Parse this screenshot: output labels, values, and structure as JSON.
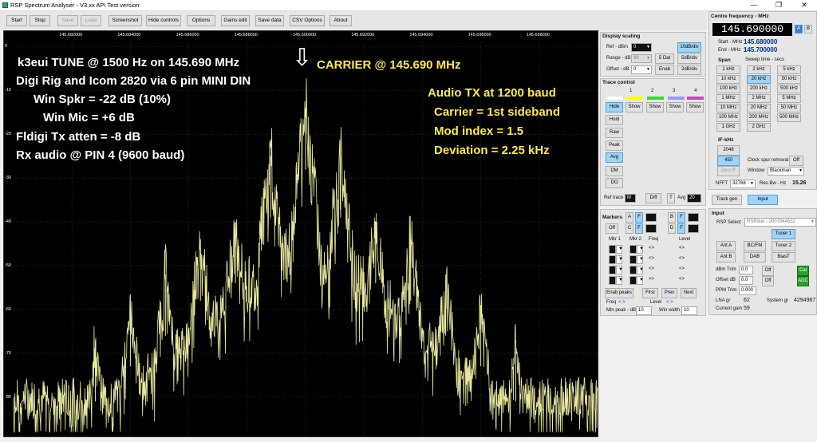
{
  "window": {
    "title": "RSP Spectrum Analyser - V3.xx API Test version",
    "min": "—",
    "max": "❐",
    "close": "✕"
  },
  "toolbar": [
    {
      "label": "Start",
      "enabled": true
    },
    {
      "label": "Stop",
      "enabled": true
    },
    {
      "label": "Save",
      "enabled": false
    },
    {
      "label": "Load",
      "enabled": false
    },
    {
      "label": "Screenshot",
      "enabled": true
    },
    {
      "label": "Hide controls",
      "enabled": true
    },
    {
      "label": "Options",
      "enabled": true
    },
    {
      "label": "Gains edit",
      "enabled": true
    },
    {
      "label": "Save data",
      "enabled": true
    },
    {
      "label": "CSV Options",
      "enabled": true
    },
    {
      "label": "About",
      "enabled": true
    }
  ],
  "overlay": {
    "left": [
      "k3eui  TUNE @ 1500 Hz on 145.690 MHz",
      "Digi Rig  and  Icom 2820  via 6 pin MINI DIN",
      "Win Spkr =   -22 dB (10%)",
      "Win Mic  =   +6 dB",
      "Fldigi Tx atten =   -8 dB",
      "Rx audio @ PIN 4 (9600 baud)"
    ],
    "arrow": "⇩",
    "carrier": "CARRIER  @ 145.690 MHz",
    "right": [
      "Audio TX at 1200 baud",
      "Carrier = 1st sideband",
      "Mod index = 1.5",
      "Deviation = 2.25 kHz"
    ]
  },
  "chart_data": {
    "type": "line",
    "x_ticks": [
      "145.682000",
      "145.684000",
      "145.686000",
      "145.688000",
      "145.690000",
      "145.692000",
      "145.694000",
      "145.696000",
      "145.698000"
    ],
    "y_ticks": [
      "0",
      "-10",
      "-20",
      "-30",
      "-40",
      "-50",
      "-60",
      "-70",
      "-80"
    ],
    "xlim": [
      145.68,
      145.7
    ],
    "ylim": [
      -89,
      1
    ],
    "ylabel_unit": "dBm",
    "trace_color": "#e8e8a0",
    "peaks": [
      {
        "x": 145.69,
        "y": -14
      },
      {
        "x": 145.6888,
        "y": -25
      },
      {
        "x": 145.6912,
        "y": -25
      },
      {
        "x": 145.6876,
        "y": -40
      },
      {
        "x": 145.6924,
        "y": -40
      },
      {
        "x": 145.6864,
        "y": -44
      },
      {
        "x": 145.6936,
        "y": -44
      },
      {
        "x": 145.6852,
        "y": -52
      },
      {
        "x": 145.6948,
        "y": -52
      },
      {
        "x": 145.684,
        "y": -59
      },
      {
        "x": 145.696,
        "y": -59
      },
      {
        "x": 145.6828,
        "y": -67
      },
      {
        "x": 145.6972,
        "y": -67
      }
    ],
    "noise_floor_dbm": -88
  },
  "display_scaling": {
    "title": "Display scaling",
    "ref_label": "Ref - dBm",
    "ref_value": "0",
    "range_label": "Range - dB",
    "range_value": "90",
    "offset_label": "Offset - dB",
    "offset_value": "0",
    "btn_10db": "10dB/div",
    "btn_5db": "5dB/div",
    "btn_2db": "2dB/div",
    "btn_5dat": "5 Dat",
    "btn_enab": "Enab"
  },
  "trace_control": {
    "title": "Trace control",
    "numbers": [
      "1",
      "2",
      "3",
      "4"
    ],
    "colors": [
      "#ffff00",
      "#33dd33",
      "#9999ff",
      "#cc44cc"
    ],
    "show": [
      "Hide",
      "Show",
      "Show",
      "Show",
      "Show"
    ],
    "modes": [
      "Hold",
      "Raw",
      "Peak",
      "Avg",
      "DM",
      "DO"
    ],
    "ref_trace": "Ref trace",
    "ref_trace_val": "M",
    "diff": "Diff",
    "t": "T",
    "avg": "Avg",
    "avg_val": "20"
  },
  "markers": {
    "title": "Markers",
    "a": "A",
    "f": "F",
    "b": "B",
    "c": "C",
    "d": "D",
    "off": "Off",
    "cols": [
      "Mkr 1",
      "Mkr 2",
      "Freq",
      "Level"
    ],
    "enab_peaks": "Enab peaks",
    "first": "First",
    "prev": "Prev",
    "next": "Next",
    "freq": "Freq",
    "freq_arrows": "< >",
    "level": "Level",
    "level_arrows": "< >",
    "min_peak": "Min peak - dB",
    "min_peak_val": "10",
    "win_width": "Win width",
    "win_width_val": "10"
  },
  "centre": {
    "title": "Centre frequency - MHz",
    "value": "145.690000",
    "a": "A",
    "b": "B",
    "start_label": "Start - MHz",
    "start": "145.680000",
    "end_label": "End - MHz",
    "end": "145.700000",
    "span": "Span",
    "sweep": "Sweep time - secs",
    "span_btns": [
      "1 kHz",
      "2 kHz",
      "5 kHz",
      "10 kHz",
      "20 kHz",
      "50 kHz",
      "100 kHz",
      "200 kHz",
      "500 kHz",
      "1 MHz",
      "2 MHz",
      "5 MHz",
      "10 MHz",
      "20 MHz",
      "50 MHz",
      "100 MHz",
      "200 MHz",
      "500 MHz",
      "1 GHz",
      "2 GHz"
    ],
    "ifkhz": "IF-kHz",
    "if_2048": "2048",
    "if_450": "450",
    "zero_if": "Zero IF",
    "clock_spur": "Clock spur removal",
    "clock_off": "Off",
    "window": "Window",
    "window_val": "Blackman",
    "nfft": "NFFT",
    "nfft_val": "32768",
    "resbw": "Res Bw - Hz",
    "resbw_val": "15.26"
  },
  "track": {
    "track_gen": "Track gen",
    "input": "Input"
  },
  "input": {
    "title": "Input",
    "rsp_select": "RSP Select",
    "rsp_val": "RSPduo - 2007044532",
    "tuner1": "Tuner 1",
    "tuner2": "Tuner 2",
    "ant_a": "Ant A",
    "bcfm": "BC/FM",
    "ant_b": "Ant B",
    "dab": "DAB",
    "biast": "BiasT",
    "dbm_trim": "dBm Trim",
    "dbm_trim_val": "0.0",
    "offset_db": "Offset dB",
    "offset_db_val": "0.0",
    "off": "Off",
    "ppm_trim": "PPM Trim",
    "ppm_val": "0.000",
    "cal": "Cal",
    "adc": "ADC",
    "lna": "LNA gr",
    "lna_val": "62",
    "system_gr": "System gr",
    "system_gr_val": "4294967",
    "current_gain": "Current gain",
    "current_gain_val": "59"
  }
}
